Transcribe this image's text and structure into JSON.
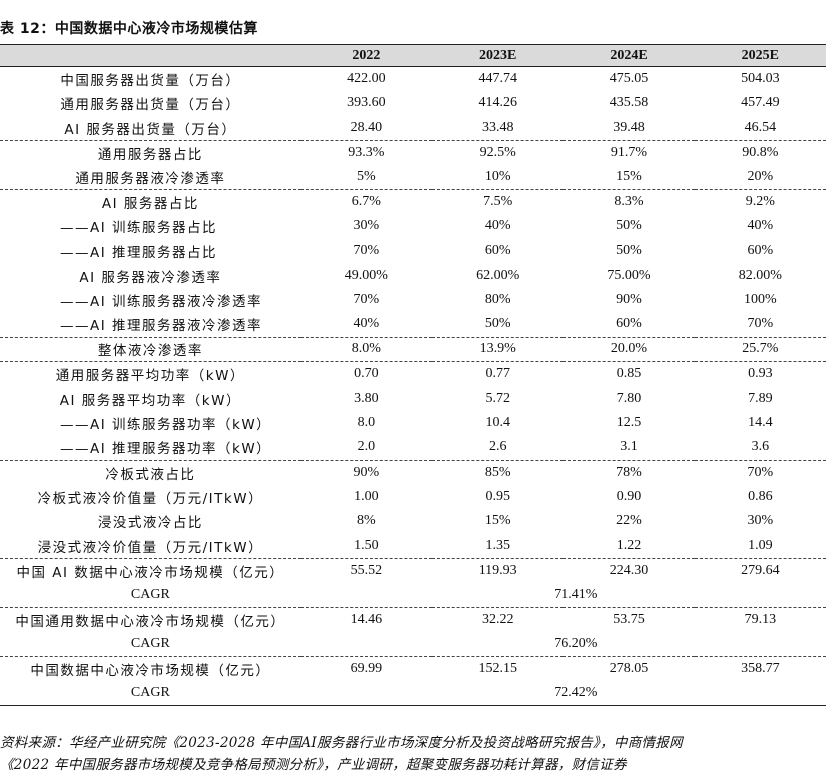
{
  "title": "表 12：中国数据中心液冷市场规模估算",
  "columns": [
    "2022",
    "2023E",
    "2024E",
    "2025E"
  ],
  "groups": [
    {
      "rows": [
        {
          "label": "中国服务器出货量（万台）",
          "values": [
            "422.00",
            "447.74",
            "475.05",
            "504.03"
          ]
        },
        {
          "label": "通用服务器出货量（万台）",
          "values": [
            "393.60",
            "414.26",
            "435.58",
            "457.49"
          ]
        },
        {
          "label": "AI 服务器出货量（万台）",
          "values": [
            "28.40",
            "33.48",
            "39.48",
            "46.54"
          ]
        }
      ]
    },
    {
      "rows": [
        {
          "label": "通用服务器占比",
          "values": [
            "93.3%",
            "92.5%",
            "91.7%",
            "90.8%"
          ]
        },
        {
          "label": "通用服务器液冷渗透率",
          "values": [
            "5%",
            "10%",
            "15%",
            "20%"
          ]
        }
      ]
    },
    {
      "rows": [
        {
          "label": "AI 服务器占比",
          "values": [
            "6.7%",
            "7.5%",
            "8.3%",
            "9.2%"
          ]
        },
        {
          "label": "——AI 训练服务器占比",
          "values": [
            "30%",
            "40%",
            "50%",
            "40%"
          ]
        },
        {
          "label": "——AI 推理服务器占比",
          "values": [
            "70%",
            "60%",
            "50%",
            "60%"
          ]
        },
        {
          "label": "AI 服务器液冷渗透率",
          "values": [
            "49.00%",
            "62.00%",
            "75.00%",
            "82.00%"
          ]
        },
        {
          "label": "——AI 训练服务器液冷渗透率",
          "values": [
            "70%",
            "80%",
            "90%",
            "100%"
          ]
        },
        {
          "label": "——AI 推理服务器液冷渗透率",
          "values": [
            "40%",
            "50%",
            "60%",
            "70%"
          ]
        }
      ]
    },
    {
      "rows": [
        {
          "label": "整体液冷渗透率",
          "values": [
            "8.0%",
            "13.9%",
            "20.0%",
            "25.7%"
          ]
        }
      ]
    },
    {
      "rows": [
        {
          "label": "通用服务器平均功率（kW）",
          "values": [
            "0.70",
            "0.77",
            "0.85",
            "0.93"
          ]
        },
        {
          "label": "AI 服务器平均功率（kW）",
          "values": [
            "3.80",
            "5.72",
            "7.80",
            "7.89"
          ]
        },
        {
          "label": "——AI 训练服务器功率（kW）",
          "values": [
            "8.0",
            "10.4",
            "12.5",
            "14.4"
          ]
        },
        {
          "label": "——AI 推理服务器功率（kW）",
          "values": [
            "2.0",
            "2.6",
            "3.1",
            "3.6"
          ]
        }
      ]
    },
    {
      "rows": [
        {
          "label": "冷板式液占比",
          "values": [
            "90%",
            "85%",
            "78%",
            "70%"
          ]
        },
        {
          "label": "冷板式液冷价值量（万元/ITkW）",
          "values": [
            "1.00",
            "0.95",
            "0.90",
            "0.86"
          ]
        },
        {
          "label": "浸没式液冷占比",
          "values": [
            "8%",
            "15%",
            "22%",
            "30%"
          ]
        },
        {
          "label": "浸没式液冷价值量（万元/ITkW）",
          "values": [
            "1.50",
            "1.35",
            "1.22",
            "1.09"
          ]
        }
      ]
    },
    {
      "rows": [
        {
          "label": "中国 AI 数据中心液冷市场规模（亿元）",
          "values": [
            "55.52",
            "119.93",
            "224.30",
            "279.64"
          ]
        },
        {
          "label": "CAGR",
          "cagr": "71.41%"
        }
      ]
    },
    {
      "rows": [
        {
          "label": "中国通用数据中心液冷市场规模（亿元）",
          "values": [
            "14.46",
            "32.22",
            "53.75",
            "79.13"
          ]
        },
        {
          "label": "CAGR",
          "cagr": "76.20%"
        }
      ]
    },
    {
      "rows": [
        {
          "label": "中国数据中心液冷市场规模（亿元）",
          "values": [
            "69.99",
            "152.15",
            "278.05",
            "358.77"
          ]
        },
        {
          "label": "CAGR",
          "cagr": "72.42%"
        }
      ]
    }
  ],
  "source_lines": [
    "资料来源：华经产业研究院《2023-2028 年中国AI服务器行业市场深度分析及投资战略研究报告》，中商情报网",
    "《2022 年中国服务器市场规模及竞争格局预测分析》，产业调研，超聚变服务器功耗计算器，财信证券"
  ]
}
